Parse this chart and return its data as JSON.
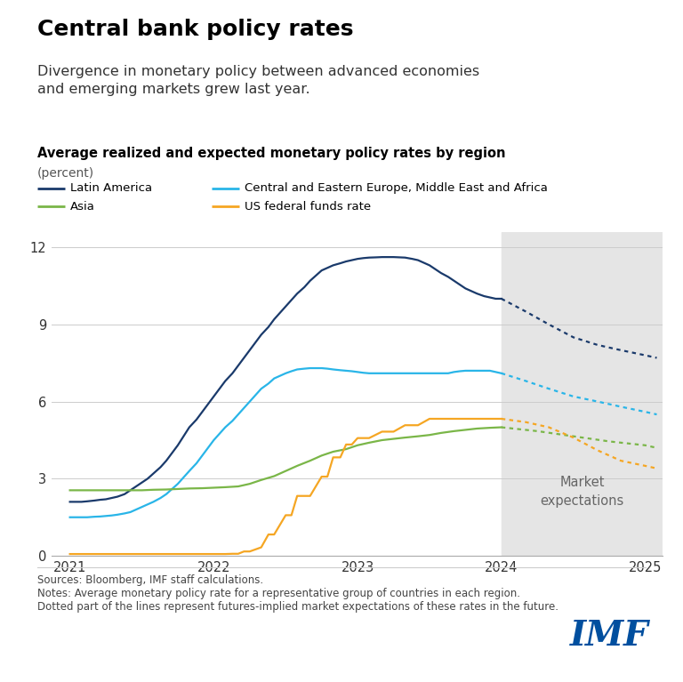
{
  "title": "Central bank policy rates",
  "subtitle": "Divergence in monetary policy between advanced economies\nand emerging markets grew last year.",
  "chart_title": "Average realized and expected monetary policy rates by region",
  "chart_subtitle": "(percent)",
  "sources": "Sources: Bloomberg, IMF staff calculations.",
  "notes1": "Notes: Average monetary policy rate for a representative group of countries in each region.",
  "notes2": "Dotted part of the lines represent futures-implied market expectations of these rates in the future.",
  "imf_label": "IMF",
  "background_color": "#ffffff",
  "forecast_shade_color": "#e5e5e5",
  "forecast_start": 2024.0,
  "forecast_end": 2025.12,
  "ylim": [
    0,
    12.6
  ],
  "yticks": [
    0,
    3,
    6,
    9,
    12
  ],
  "xlim_start": 2020.87,
  "xlim_end": 2025.12,
  "xticks": [
    2021,
    2022,
    2023,
    2024,
    2025
  ],
  "legend_entries": [
    {
      "label": "Latin America",
      "color": "#1a3a6b"
    },
    {
      "label": "Central and Eastern Europe, Middle East and Africa",
      "color": "#29b5e8"
    },
    {
      "label": "Asia",
      "color": "#7ab648"
    },
    {
      "label": "US federal funds rate",
      "color": "#f5a623"
    }
  ],
  "series": {
    "latin_america": {
      "color": "#1a3a6b",
      "realized_x": [
        2021.0,
        2021.04,
        2021.08,
        2021.12,
        2021.17,
        2021.21,
        2021.25,
        2021.29,
        2021.33,
        2021.38,
        2021.42,
        2021.46,
        2021.5,
        2021.54,
        2021.58,
        2021.63,
        2021.67,
        2021.71,
        2021.75,
        2021.79,
        2021.83,
        2021.88,
        2021.92,
        2021.96,
        2022.0,
        2022.04,
        2022.08,
        2022.13,
        2022.17,
        2022.21,
        2022.25,
        2022.29,
        2022.33,
        2022.38,
        2022.42,
        2022.46,
        2022.5,
        2022.54,
        2022.58,
        2022.63,
        2022.67,
        2022.71,
        2022.75,
        2022.79,
        2022.83,
        2022.88,
        2022.92,
        2022.96,
        2023.0,
        2023.04,
        2023.08,
        2023.13,
        2023.17,
        2023.21,
        2023.25,
        2023.29,
        2023.33,
        2023.38,
        2023.42,
        2023.46,
        2023.5,
        2023.54,
        2023.58,
        2023.63,
        2023.67,
        2023.71,
        2023.75,
        2023.79,
        2023.83,
        2023.88,
        2023.92,
        2023.96,
        2024.0
      ],
      "realized_y": [
        2.1,
        2.1,
        2.1,
        2.12,
        2.15,
        2.18,
        2.2,
        2.25,
        2.3,
        2.4,
        2.55,
        2.7,
        2.85,
        3.0,
        3.2,
        3.45,
        3.7,
        4.0,
        4.3,
        4.65,
        5.0,
        5.3,
        5.6,
        5.9,
        6.2,
        6.5,
        6.8,
        7.1,
        7.4,
        7.7,
        8.0,
        8.3,
        8.6,
        8.9,
        9.2,
        9.45,
        9.7,
        9.95,
        10.2,
        10.45,
        10.7,
        10.9,
        11.1,
        11.2,
        11.3,
        11.38,
        11.45,
        11.5,
        11.55,
        11.58,
        11.6,
        11.61,
        11.62,
        11.62,
        11.62,
        11.61,
        11.6,
        11.55,
        11.5,
        11.4,
        11.3,
        11.15,
        11.0,
        10.85,
        10.7,
        10.55,
        10.4,
        10.3,
        10.2,
        10.1,
        10.05,
        10.0,
        10.0
      ],
      "forecast_x": [
        2024.0,
        2024.17,
        2024.33,
        2024.5,
        2024.67,
        2024.83,
        2025.0,
        2025.08
      ],
      "forecast_y": [
        10.0,
        9.5,
        9.0,
        8.5,
        8.2,
        8.0,
        7.8,
        7.7
      ]
    },
    "ceemea": {
      "color": "#29b5e8",
      "realized_x": [
        2021.0,
        2021.04,
        2021.08,
        2021.12,
        2021.17,
        2021.21,
        2021.25,
        2021.29,
        2021.33,
        2021.38,
        2021.42,
        2021.46,
        2021.5,
        2021.54,
        2021.58,
        2021.63,
        2021.67,
        2021.71,
        2021.75,
        2021.79,
        2021.83,
        2021.88,
        2021.92,
        2021.96,
        2022.0,
        2022.04,
        2022.08,
        2022.13,
        2022.17,
        2022.21,
        2022.25,
        2022.29,
        2022.33,
        2022.38,
        2022.42,
        2022.46,
        2022.5,
        2022.54,
        2022.58,
        2022.63,
        2022.67,
        2022.71,
        2022.75,
        2022.79,
        2022.83,
        2022.88,
        2022.92,
        2022.96,
        2023.0,
        2023.04,
        2023.08,
        2023.13,
        2023.17,
        2023.21,
        2023.25,
        2023.29,
        2023.33,
        2023.38,
        2023.42,
        2023.46,
        2023.5,
        2023.54,
        2023.58,
        2023.63,
        2023.67,
        2023.71,
        2023.75,
        2023.79,
        2023.83,
        2023.88,
        2023.92,
        2023.96,
        2024.0
      ],
      "realized_y": [
        1.5,
        1.5,
        1.5,
        1.5,
        1.52,
        1.53,
        1.55,
        1.57,
        1.6,
        1.65,
        1.7,
        1.8,
        1.9,
        2.0,
        2.1,
        2.25,
        2.4,
        2.6,
        2.8,
        3.05,
        3.3,
        3.6,
        3.9,
        4.2,
        4.5,
        4.75,
        5.0,
        5.25,
        5.5,
        5.75,
        6.0,
        6.25,
        6.5,
        6.7,
        6.9,
        7.0,
        7.1,
        7.18,
        7.25,
        7.28,
        7.3,
        7.3,
        7.3,
        7.28,
        7.25,
        7.22,
        7.2,
        7.18,
        7.15,
        7.12,
        7.1,
        7.1,
        7.1,
        7.1,
        7.1,
        7.1,
        7.1,
        7.1,
        7.1,
        7.1,
        7.1,
        7.1,
        7.1,
        7.1,
        7.15,
        7.18,
        7.2,
        7.2,
        7.2,
        7.2,
        7.2,
        7.15,
        7.1
      ],
      "forecast_x": [
        2024.0,
        2024.17,
        2024.33,
        2024.5,
        2024.67,
        2024.83,
        2025.0,
        2025.08
      ],
      "forecast_y": [
        7.1,
        6.8,
        6.5,
        6.2,
        6.0,
        5.8,
        5.6,
        5.5
      ]
    },
    "asia": {
      "color": "#7ab648",
      "realized_x": [
        2021.0,
        2021.08,
        2021.17,
        2021.25,
        2021.33,
        2021.42,
        2021.5,
        2021.58,
        2021.67,
        2021.75,
        2021.83,
        2021.92,
        2022.0,
        2022.08,
        2022.17,
        2022.25,
        2022.33,
        2022.42,
        2022.5,
        2022.58,
        2022.67,
        2022.75,
        2022.83,
        2022.92,
        2023.0,
        2023.08,
        2023.17,
        2023.25,
        2023.33,
        2023.42,
        2023.5,
        2023.58,
        2023.67,
        2023.75,
        2023.83,
        2023.92,
        2024.0
      ],
      "realized_y": [
        2.55,
        2.55,
        2.55,
        2.55,
        2.55,
        2.55,
        2.55,
        2.57,
        2.58,
        2.6,
        2.62,
        2.63,
        2.65,
        2.67,
        2.7,
        2.8,
        2.95,
        3.1,
        3.3,
        3.5,
        3.7,
        3.9,
        4.05,
        4.15,
        4.3,
        4.4,
        4.5,
        4.55,
        4.6,
        4.65,
        4.7,
        4.78,
        4.85,
        4.9,
        4.95,
        4.98,
        5.0
      ],
      "forecast_x": [
        2024.0,
        2024.25,
        2024.5,
        2024.75,
        2025.0,
        2025.08
      ],
      "forecast_y": [
        5.0,
        4.85,
        4.65,
        4.45,
        4.3,
        4.2
      ]
    },
    "us_fed": {
      "color": "#f5a623",
      "realized_x": [
        2021.0,
        2021.04,
        2021.08,
        2021.17,
        2021.25,
        2021.33,
        2021.42,
        2021.5,
        2021.58,
        2021.67,
        2021.75,
        2021.83,
        2021.92,
        2022.0,
        2022.04,
        2022.08,
        2022.13,
        2022.17,
        2022.21,
        2022.25,
        2022.33,
        2022.38,
        2022.42,
        2022.5,
        2022.54,
        2022.58,
        2022.63,
        2022.67,
        2022.75,
        2022.79,
        2022.83,
        2022.88,
        2022.92,
        2022.96,
        2023.0,
        2023.08,
        2023.17,
        2023.25,
        2023.33,
        2023.42,
        2023.5,
        2023.58,
        2023.67,
        2023.75,
        2023.83,
        2023.92,
        2024.0
      ],
      "realized_y": [
        0.07,
        0.07,
        0.07,
        0.07,
        0.07,
        0.07,
        0.07,
        0.07,
        0.07,
        0.07,
        0.07,
        0.07,
        0.07,
        0.07,
        0.07,
        0.07,
        0.08,
        0.08,
        0.17,
        0.17,
        0.33,
        0.83,
        0.83,
        1.58,
        1.58,
        2.33,
        2.33,
        2.33,
        3.08,
        3.08,
        3.83,
        3.83,
        4.33,
        4.33,
        4.58,
        4.58,
        4.83,
        4.83,
        5.08,
        5.08,
        5.33,
        5.33,
        5.33,
        5.33,
        5.33,
        5.33,
        5.33
      ],
      "forecast_x": [
        2024.0,
        2024.17,
        2024.33,
        2024.5,
        2024.67,
        2024.83,
        2025.0,
        2025.08
      ],
      "forecast_y": [
        5.33,
        5.2,
        5.0,
        4.6,
        4.1,
        3.7,
        3.5,
        3.4
      ]
    }
  }
}
